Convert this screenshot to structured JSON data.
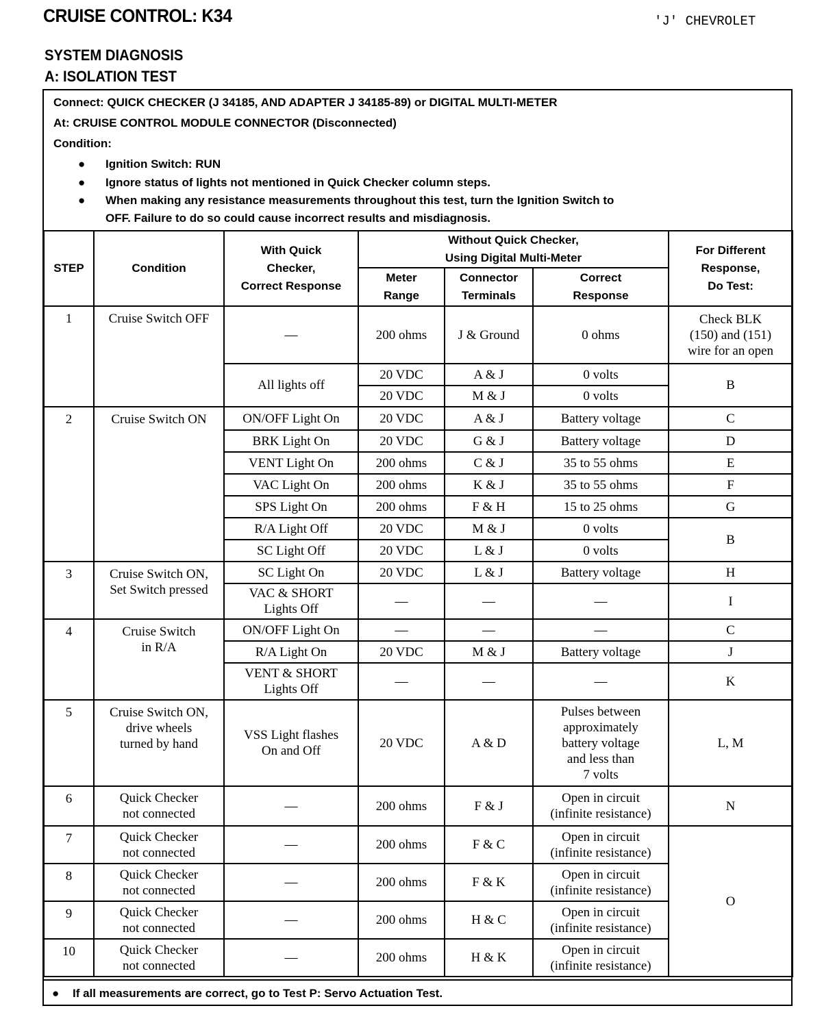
{
  "header": {
    "title": "CRUISE CONTROL: K34",
    "brand": "'J' CHEVROLET",
    "section": "SYSTEM DIAGNOSIS",
    "test": "A: ISOLATION TEST"
  },
  "intro": {
    "connect": "Connect: QUICK CHECKER (J 34185, AND ADAPTER J 34185-89) or DIGITAL MULTI-METER",
    "at": "At: CRUISE CONTROL MODULE CONNECTOR (Disconnected)",
    "condition": "Condition:",
    "bullets": [
      "Ignition Switch: RUN",
      "Ignore status of lights not mentioned in Quick Checker column steps.",
      "When making any resistance measurements throughout this test, turn the Ignition Switch to",
      "OFF. Failure to do so could cause incorrect results and misdiagnosis."
    ],
    "bullet_icon": "●"
  },
  "table": {
    "headers": {
      "step": "STEP",
      "condition": "Condition",
      "quick": "With Quick\nChecker,\nCorrect Response",
      "without": "Without Quick Checker,\nUsing Digital Multi-Meter",
      "range": "Meter\nRange",
      "terminals": "Connector\nTerminals",
      "response": "Correct\nResponse",
      "do_test": "For Different\nResponse,\nDo Test:"
    },
    "rows": [
      {
        "step": "1",
        "condition": "Cruise Switch OFF",
        "quick": "—",
        "range": "200 ohms",
        "terminals": "J & Ground",
        "response": "0 ohms",
        "do_test": "Check BLK\n(150) and (151)\nwire for an open"
      },
      {
        "quick": "All lights off",
        "range": "20 VDC",
        "terminals": "A & J",
        "response": "0 volts",
        "do_test": "B"
      },
      {
        "range": "20 VDC",
        "terminals": "M & J",
        "response": "0 volts"
      },
      {
        "step": "2",
        "condition": "Cruise Switch ON",
        "quick": "ON/OFF Light On",
        "range": "20 VDC",
        "terminals": "A & J",
        "response": "Battery voltage",
        "do_test": "C"
      },
      {
        "quick": "BRK Light On",
        "range": "20 VDC",
        "terminals": "G & J",
        "response": "Battery voltage",
        "do_test": "D"
      },
      {
        "quick": "VENT Light On",
        "range": "200 ohms",
        "terminals": "C & J",
        "response": "35 to 55 ohms",
        "do_test": "E"
      },
      {
        "quick": "VAC Light On",
        "range": "200 ohms",
        "terminals": "K & J",
        "response": "35 to 55 ohms",
        "do_test": "F"
      },
      {
        "quick": "SPS Light On",
        "range": "200 ohms",
        "terminals": "F & H",
        "response": "15 to 25 ohms",
        "do_test": "G"
      },
      {
        "quick": "R/A Light Off",
        "range": "20 VDC",
        "terminals": "M & J",
        "response": "0 volts",
        "do_test": "B"
      },
      {
        "quick": "SC Light Off",
        "range": "20 VDC",
        "terminals": "L & J",
        "response": "0 volts"
      },
      {
        "step": "3",
        "condition": "Cruise Switch ON,\nSet Switch pressed",
        "quick": "SC Light On",
        "range": "20 VDC",
        "terminals": "L & J",
        "response": "Battery voltage",
        "do_test": "H"
      },
      {
        "quick": "VAC & SHORT\nLights Off",
        "range": "—",
        "terminals": "—",
        "response": "—",
        "do_test": "I"
      },
      {
        "step": "4",
        "condition": "Cruise Switch\nin R/A",
        "quick": "ON/OFF Light On",
        "range": "—",
        "terminals": "—",
        "response": "—",
        "do_test": "C"
      },
      {
        "quick": "R/A Light On",
        "range": "20 VDC",
        "terminals": "M & J",
        "response": "Battery voltage",
        "do_test": "J"
      },
      {
        "quick": "VENT & SHORT\nLights Off",
        "range": "—",
        "terminals": "—",
        "response": "—",
        "do_test": "K"
      },
      {
        "step": "5",
        "condition": "Cruise Switch ON,\ndrive wheels\nturned by hand",
        "quick": "VSS Light flashes\nOn and Off",
        "range": "20 VDC",
        "terminals": "A & D",
        "response": "Pulses between\napproximately\nbattery voltage\nand less than\n7 volts",
        "do_test": "L, M"
      },
      {
        "step": "6",
        "condition": "Quick Checker\nnot connected",
        "quick": "—",
        "range": "200 ohms",
        "terminals": "F & J",
        "response": "Open in circuit\n(infinite resistance)",
        "do_test": "N"
      },
      {
        "step": "7",
        "condition": "Quick Checker\nnot connected",
        "quick": "—",
        "range": "200 ohms",
        "terminals": "F & C",
        "response": "Open in circuit\n(infinite resistance)",
        "do_test": "O"
      },
      {
        "step": "8",
        "condition": "Quick Checker\nnot connected",
        "quick": "—",
        "range": "200 ohms",
        "terminals": "F & K",
        "response": "Open in circuit\n(infinite resistance)"
      },
      {
        "step": "9",
        "condition": "Quick Checker\nnot connected",
        "quick": "—",
        "range": "200 ohms",
        "terminals": "H & C",
        "response": "Open in circuit\n(infinite resistance)"
      },
      {
        "step": "10",
        "condition": "Quick Checker\nnot connected",
        "quick": "—",
        "range": "200 ohms",
        "terminals": "H & K",
        "response": "Open in circuit\n(infinite resistance)"
      }
    ]
  },
  "footer": {
    "bullet_icon": "●",
    "text": "If all measurements are correct, go to Test P: Servo Actuation Test."
  }
}
